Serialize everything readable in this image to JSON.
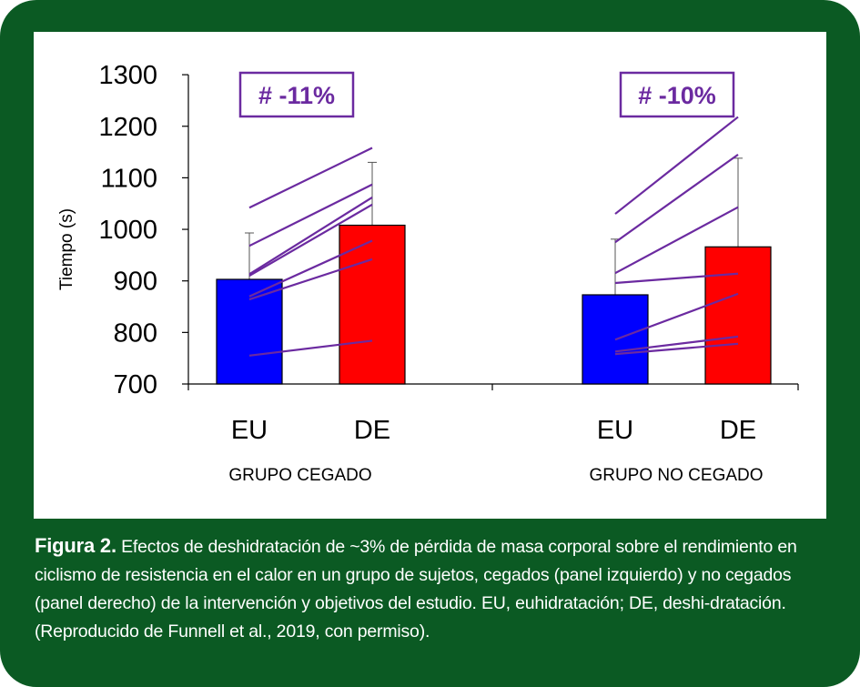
{
  "chart_data": {
    "type": "bar",
    "ylabel": "Tiempo (s)",
    "ylim": [
      700,
      1300
    ],
    "yticks": [
      "700",
      "800",
      "900",
      "1000",
      "1100",
      "1200",
      "1300"
    ],
    "groups": [
      {
        "name": "GRUPO CEGADO",
        "badge": "# -11%",
        "categories": [
          "EU",
          "DE"
        ],
        "values": [
          903,
          1008
        ],
        "errors": [
          90,
          122
        ],
        "subjects": [
          [
            1042,
            1158
          ],
          [
            968,
            1087
          ],
          [
            913,
            1062
          ],
          [
            910,
            1048
          ],
          [
            870,
            978
          ],
          [
            864,
            942
          ],
          [
            755,
            784
          ]
        ]
      },
      {
        "name": "GRUPO NO CEGADO",
        "badge": "# -10%",
        "categories": [
          "EU",
          "DE"
        ],
        "values": [
          873,
          966
        ],
        "errors": [
          108,
          172
        ],
        "subjects": [
          [
            1030,
            1218
          ],
          [
            975,
            1145
          ],
          [
            915,
            1043
          ],
          [
            896,
            914
          ],
          [
            786,
            875
          ],
          [
            763,
            792
          ],
          [
            758,
            778
          ]
        ]
      }
    ],
    "colors": {
      "EU": "#0000ff",
      "DE": "#ff0000",
      "lines": "#6b2aa0",
      "badge": "#6b2aa0"
    }
  },
  "caption": {
    "label": "Figura 2.",
    "text": " Efectos de deshidratación de ~3% de pérdida de masa corporal sobre el rendimiento en ciclismo de resistencia en el calor en un grupo de sujetos, cegados (panel izquierdo) y no cegados (panel derecho) de la intervención y objetivos del estudio. EU, euhidratación; DE, deshi-dratación. (Reproducido de Funnell et al., 2019, con permiso)."
  }
}
